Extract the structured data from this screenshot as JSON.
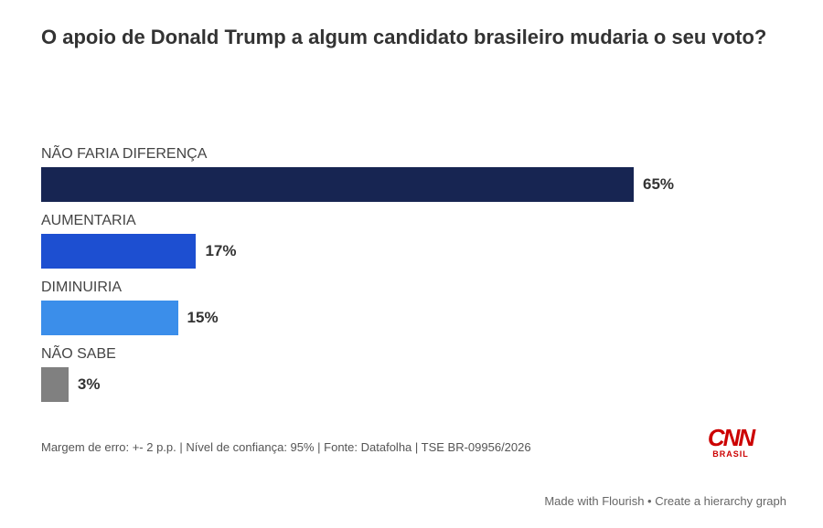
{
  "chart_data": {
    "type": "bar",
    "orientation": "horizontal",
    "title": "O apoio de Donald Trump a algum candidato brasileiro mudaria o seu voto?",
    "categories": [
      "NÃO FARIA DIFERENÇA",
      "AUMENTARIA",
      "DIMINUIRIA",
      "NÃO SABE"
    ],
    "values": [
      65,
      17,
      15,
      3
    ],
    "value_labels": [
      "65%",
      "17%",
      "15%",
      "3%"
    ],
    "colors": [
      "#172552",
      "#1d4fd1",
      "#3b8eea",
      "#808080"
    ],
    "xlim": [
      0,
      65
    ],
    "grid": false,
    "legend": "none"
  },
  "footer": {
    "source": "Margem de erro: +- 2 p.p. | Nível de confiança: 95% | Fonte: Datafolha | TSE BR-09956/2026"
  },
  "logo": {
    "main": "CNN",
    "sub": "BRASIL"
  },
  "credit": "Made with Flourish • Create a hierarchy graph"
}
